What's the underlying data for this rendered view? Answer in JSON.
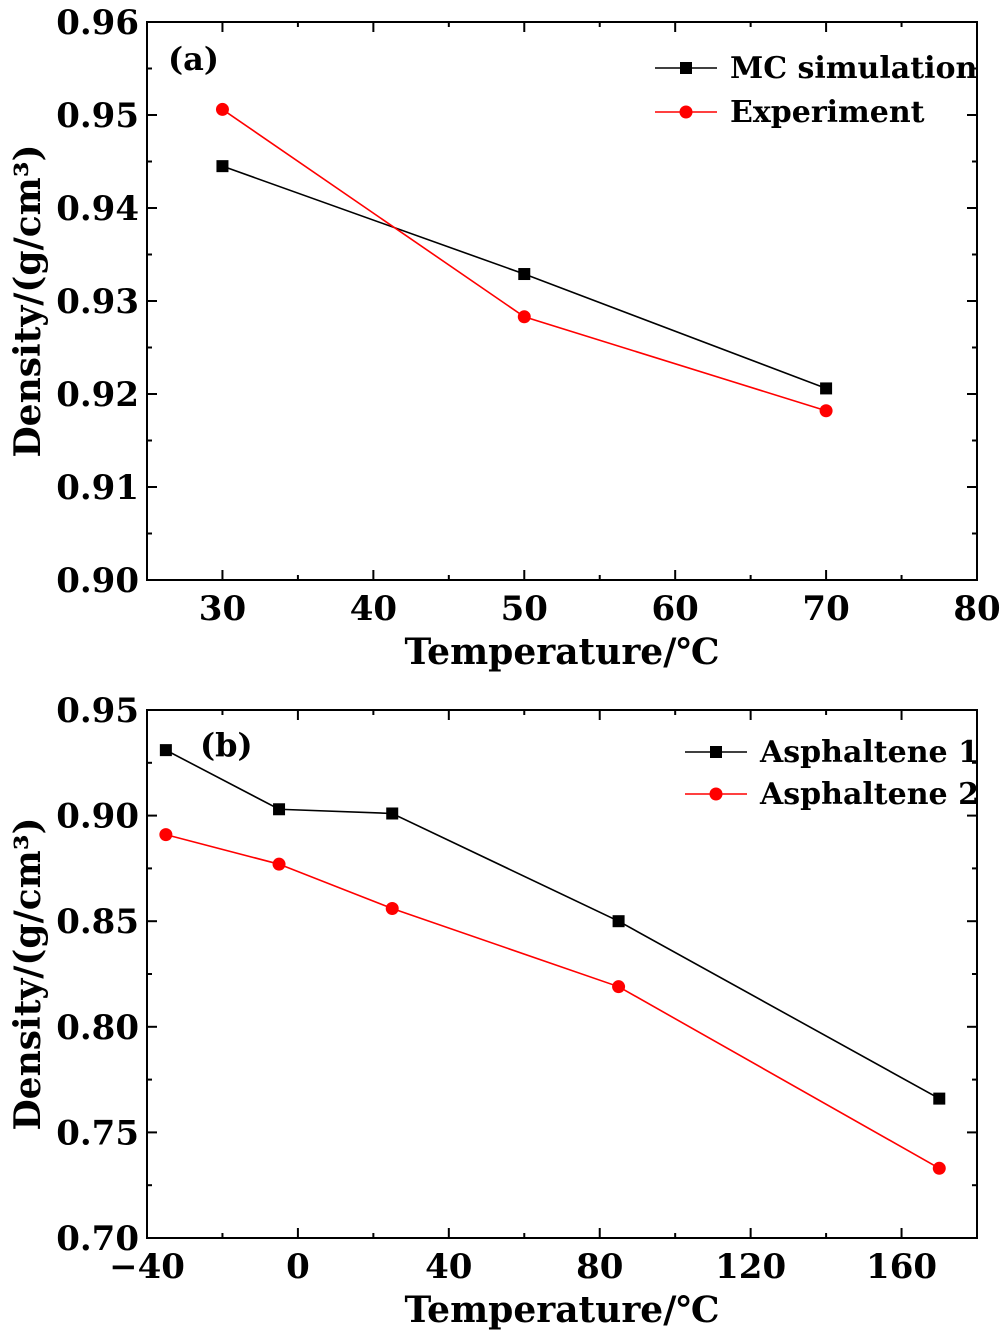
{
  "chart_data": [
    {
      "panel": "(a)",
      "type": "line",
      "title": "",
      "xlabel": "Temperature/℃",
      "ylabel": "Density/(g/cm³)",
      "xlim": [
        25,
        80
      ],
      "ylim": [
        0.9,
        0.96
      ],
      "xticks": [
        30,
        40,
        50,
        60,
        70,
        80
      ],
      "yticks": [
        0.9,
        0.91,
        0.92,
        0.93,
        0.94,
        0.95,
        0.96
      ],
      "xtick_labels": [
        "30",
        "40",
        "50",
        "60",
        "70",
        "80"
      ],
      "ytick_labels": [
        "0.90",
        "0.91",
        "0.92",
        "0.93",
        "0.94",
        "0.95",
        "0.96"
      ],
      "grid": false,
      "legend_position": "top-right",
      "series": [
        {
          "name": "MC simulation",
          "color": "#000000",
          "marker": "square",
          "x": [
            30,
            50,
            70
          ],
          "y": [
            0.9445,
            0.9329,
            0.9206
          ]
        },
        {
          "name": "Experiment",
          "color": "#ff0000",
          "marker": "circle",
          "x": [
            30,
            50,
            70
          ],
          "y": [
            0.9506,
            0.9283,
            0.9182
          ]
        }
      ]
    },
    {
      "panel": "(b)",
      "type": "line",
      "title": "",
      "xlabel": "Temperature/℃",
      "ylabel": "Density/(g/cm³)",
      "xlim": [
        -40,
        180
      ],
      "ylim": [
        0.7,
        0.95
      ],
      "xticks": [
        -40,
        0,
        40,
        80,
        120,
        160
      ],
      "yticks": [
        0.7,
        0.75,
        0.8,
        0.85,
        0.9,
        0.95
      ],
      "xtick_labels": [
        "−40",
        "0",
        "40",
        "80",
        "120",
        "160"
      ],
      "ytick_labels": [
        "0.70",
        "0.75",
        "0.80",
        "0.85",
        "0.90",
        "0.95"
      ],
      "grid": false,
      "legend_position": "top-right",
      "series": [
        {
          "name": "Asphaltene 1",
          "color": "#000000",
          "marker": "square",
          "x": [
            -35,
            -5,
            25,
            85,
            170
          ],
          "y": [
            0.931,
            0.903,
            0.901,
            0.85,
            0.766
          ]
        },
        {
          "name": "Asphaltene 2",
          "color": "#ff0000",
          "marker": "circle",
          "x": [
            -35,
            -5,
            25,
            85,
            170
          ],
          "y": [
            0.891,
            0.877,
            0.856,
            0.819,
            0.733
          ]
        }
      ]
    }
  ]
}
